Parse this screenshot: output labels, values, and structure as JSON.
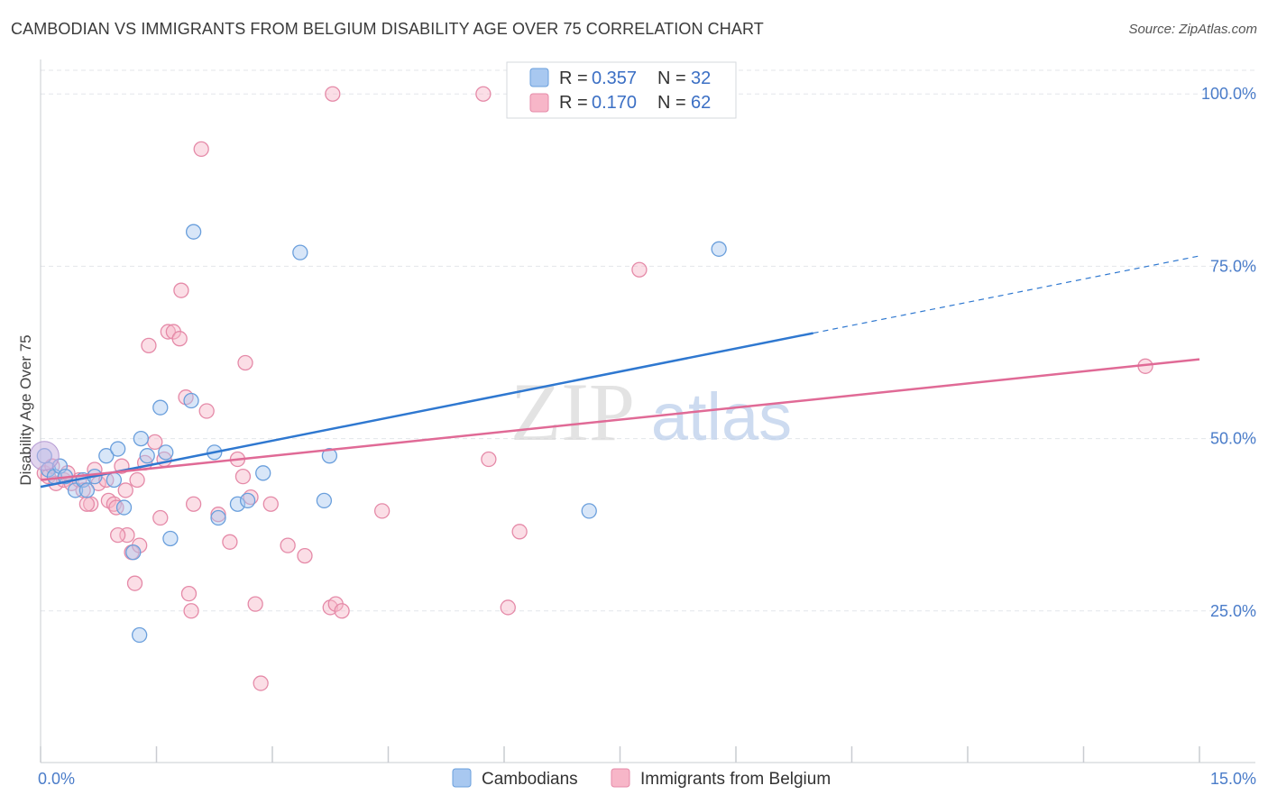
{
  "title": "CAMBODIAN VS IMMIGRANTS FROM BELGIUM DISABILITY AGE OVER 75 CORRELATION CHART",
  "source": "Source: ZipAtlas.com",
  "watermark": {
    "zip": "ZIP",
    "atlas": "atlas"
  },
  "legend_top": [
    {
      "r_label": "R =",
      "r_value": "0.357",
      "n_label": "N =",
      "n_value": "32"
    },
    {
      "r_label": "R =",
      "r_value": "0.170",
      "n_label": "N =",
      "n_value": "62"
    }
  ],
  "colors": {
    "cambodians_fill": "#a8c8f0",
    "cambodians_stroke": "#6a9fdc",
    "cambodians_line": "#2f78d0",
    "belgium_fill": "#f7b6c8",
    "belgium_stroke": "#e58aa8",
    "belgium_line": "#e06a96",
    "grid": "#e3e6ea",
    "tick_label": "#4a7cc9"
  },
  "chart_data": {
    "type": "scatter",
    "title": "CAMBODIAN VS IMMIGRANTS FROM BELGIUM DISABILITY AGE OVER 75 CORRELATION CHART",
    "xlabel": "",
    "ylabel": "Disability Age Over 75",
    "xlim": [
      0,
      15
    ],
    "ylim": [
      3,
      105
    ],
    "x_ticks_labels": [
      "0.0%",
      "15.0%"
    ],
    "y_ticks": [
      25,
      50,
      75,
      100
    ],
    "y_tick_labels": [
      "25.0%",
      "50.0%",
      "75.0%",
      "100.0%"
    ],
    "grid": true,
    "legend_position": "top-center",
    "series": [
      {
        "name": "Cambodians",
        "r": 0.357,
        "n": 32,
        "trend": {
          "x": [
            0,
            10
          ],
          "y": [
            43,
            65.3
          ],
          "dashed_to": [
            15,
            76.5
          ]
        },
        "points": [
          [
            0.05,
            47.5
          ],
          [
            0.1,
            45.5
          ],
          [
            0.18,
            44.5
          ],
          [
            0.25,
            46
          ],
          [
            0.32,
            44.5
          ],
          [
            0.45,
            42.5
          ],
          [
            0.55,
            44
          ],
          [
            0.6,
            42.5
          ],
          [
            0.7,
            44.5
          ],
          [
            0.85,
            47.5
          ],
          [
            0.95,
            44
          ],
          [
            1.0,
            48.5
          ],
          [
            1.08,
            40
          ],
          [
            1.2,
            33.5
          ],
          [
            1.28,
            21.5
          ],
          [
            1.3,
            50
          ],
          [
            1.38,
            47.5
          ],
          [
            1.55,
            54.5
          ],
          [
            1.62,
            48
          ],
          [
            1.68,
            35.5
          ],
          [
            1.98,
            80
          ],
          [
            1.95,
            55.5
          ],
          [
            2.25,
            48
          ],
          [
            2.3,
            38.5
          ],
          [
            2.55,
            40.5
          ],
          [
            2.68,
            41
          ],
          [
            2.88,
            45
          ],
          [
            3.36,
            77
          ],
          [
            3.74,
            47.5
          ],
          [
            3.67,
            41
          ],
          [
            7.1,
            39.5
          ],
          [
            8.78,
            77.5
          ]
        ]
      },
      {
        "name": "Immigrants from Belgium",
        "r": 0.17,
        "n": 62,
        "trend": {
          "x": [
            0,
            15
          ],
          "y": [
            44,
            61.5
          ]
        },
        "points": [
          [
            0.05,
            45
          ],
          [
            0.1,
            44.5
          ],
          [
            0.2,
            43.5
          ],
          [
            0.3,
            44
          ],
          [
            0.4,
            43.5
          ],
          [
            0.5,
            44
          ],
          [
            0.55,
            42.5
          ],
          [
            0.65,
            40.5
          ],
          [
            0.75,
            43.5
          ],
          [
            0.85,
            44
          ],
          [
            0.88,
            41
          ],
          [
            0.95,
            40.5
          ],
          [
            0.98,
            40
          ],
          [
            1.05,
            46
          ],
          [
            1.1,
            42.5
          ],
          [
            1.12,
            36
          ],
          [
            1.18,
            33.5
          ],
          [
            1.22,
            29
          ],
          [
            1.28,
            34.5
          ],
          [
            1.35,
            46.5
          ],
          [
            1.4,
            63.5
          ],
          [
            1.48,
            49.5
          ],
          [
            1.55,
            38.5
          ],
          [
            1.6,
            47
          ],
          [
            1.65,
            65.5
          ],
          [
            1.72,
            65.5
          ],
          [
            1.8,
            64.5
          ],
          [
            1.82,
            71.5
          ],
          [
            1.88,
            56
          ],
          [
            1.92,
            27.5
          ],
          [
            1.95,
            25
          ],
          [
            1.98,
            40.5
          ],
          [
            2.08,
            92
          ],
          [
            2.15,
            54
          ],
          [
            2.3,
            39
          ],
          [
            2.45,
            35
          ],
          [
            2.55,
            47
          ],
          [
            2.62,
            44.5
          ],
          [
            2.65,
            61
          ],
          [
            2.72,
            41.5
          ],
          [
            2.78,
            26
          ],
          [
            2.85,
            14.5
          ],
          [
            2.98,
            40.5
          ],
          [
            3.2,
            34.5
          ],
          [
            3.42,
            33
          ],
          [
            3.75,
            25.5
          ],
          [
            3.78,
            100
          ],
          [
            3.82,
            26
          ],
          [
            3.9,
            25
          ],
          [
            4.42,
            39.5
          ],
          [
            5.73,
            100
          ],
          [
            5.8,
            47
          ],
          [
            6.05,
            25.5
          ],
          [
            6.2,
            36.5
          ],
          [
            7.75,
            74.5
          ],
          [
            14.3,
            60.5
          ],
          [
            0.15,
            46
          ],
          [
            0.35,
            45
          ],
          [
            0.6,
            40.5
          ],
          [
            0.7,
            45.5
          ],
          [
            1.0,
            36
          ],
          [
            1.25,
            44
          ]
        ]
      }
    ],
    "legend_bottom": [
      "Cambodians",
      "Immigrants from Belgium"
    ]
  }
}
